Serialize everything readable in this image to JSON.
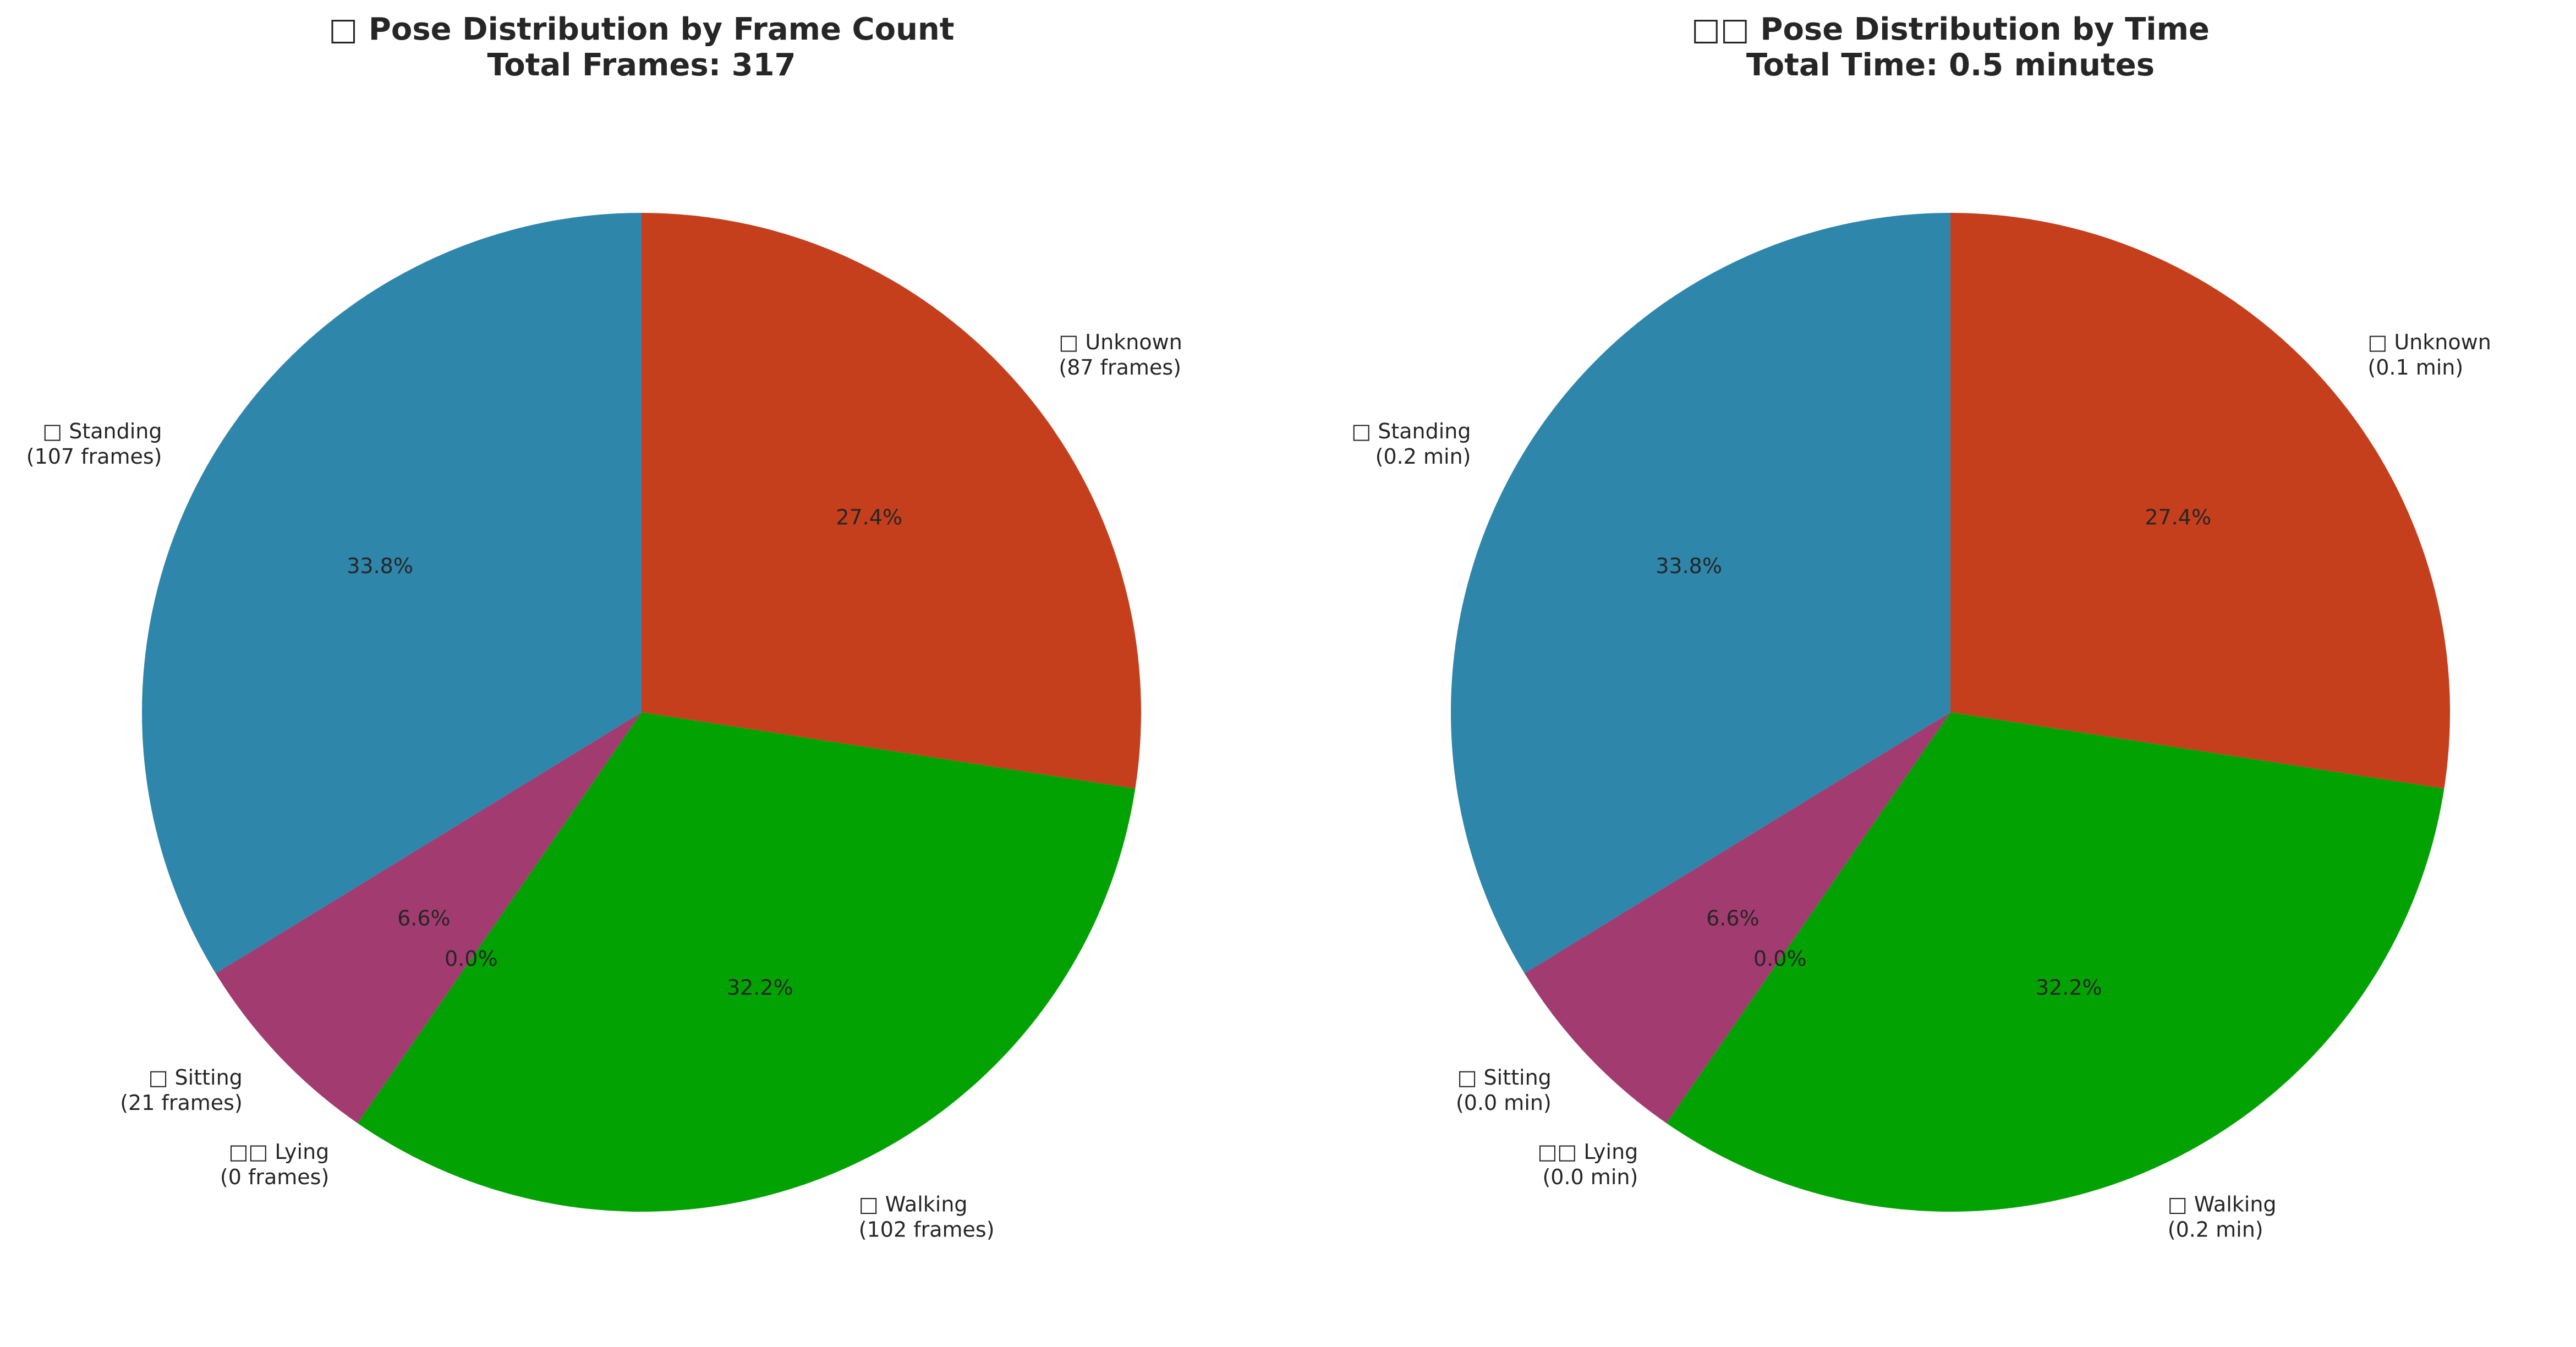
{
  "chart_data": [
    {
      "type": "pie",
      "title_line1": "□ Pose Distribution by Frame Count",
      "title_line2": "Total Frames: 317",
      "start_angle_deg": 90,
      "direction": "clockwise",
      "slices": [
        {
          "key": "unknown",
          "label_line1": "□ Unknown",
          "label_line2": "(87 frames)",
          "value": 87,
          "percent": "27.4%",
          "color": "#c53f1d"
        },
        {
          "key": "walking",
          "label_line1": "□ Walking",
          "label_line2": "(102 frames)",
          "value": 102,
          "percent": "32.2%",
          "color": "#01a201"
        },
        {
          "key": "lying",
          "label_line1": "□□ Lying",
          "label_line2": "(0 frames)",
          "value": 0,
          "percent": "0.0%",
          "color": "#c8a33a"
        },
        {
          "key": "sitting",
          "label_line1": "□ Sitting",
          "label_line2": "(21 frames)",
          "value": 21,
          "percent": "6.6%",
          "color": "#a23b70"
        },
        {
          "key": "standing",
          "label_line1": "□ Standing",
          "label_line2": "(107 frames)",
          "value": 107,
          "percent": "33.8%",
          "color": "#2e86ab"
        }
      ]
    },
    {
      "type": "pie",
      "title_line1": "□□ Pose Distribution by Time",
      "title_line2": "Total Time: 0.5 minutes",
      "start_angle_deg": 90,
      "direction": "clockwise",
      "slices": [
        {
          "key": "unknown",
          "label_line1": "□ Unknown",
          "label_line2": "(0.1 min)",
          "value": 87,
          "percent": "27.4%",
          "color": "#c53f1d"
        },
        {
          "key": "walking",
          "label_line1": "□ Walking",
          "label_line2": "(0.2 min)",
          "value": 102,
          "percent": "32.2%",
          "color": "#01a201"
        },
        {
          "key": "lying",
          "label_line1": "□□ Lying",
          "label_line2": "(0.0 min)",
          "value": 0,
          "percent": "0.0%",
          "color": "#c8a33a"
        },
        {
          "key": "sitting",
          "label_line1": "□ Sitting",
          "label_line2": "(0.0 min)",
          "value": 21,
          "percent": "6.6%",
          "color": "#a23b70"
        },
        {
          "key": "standing",
          "label_line1": "□ Standing",
          "label_line2": "(0.2 min)",
          "value": 107,
          "percent": "33.8%",
          "color": "#2e86ab"
        }
      ]
    }
  ]
}
